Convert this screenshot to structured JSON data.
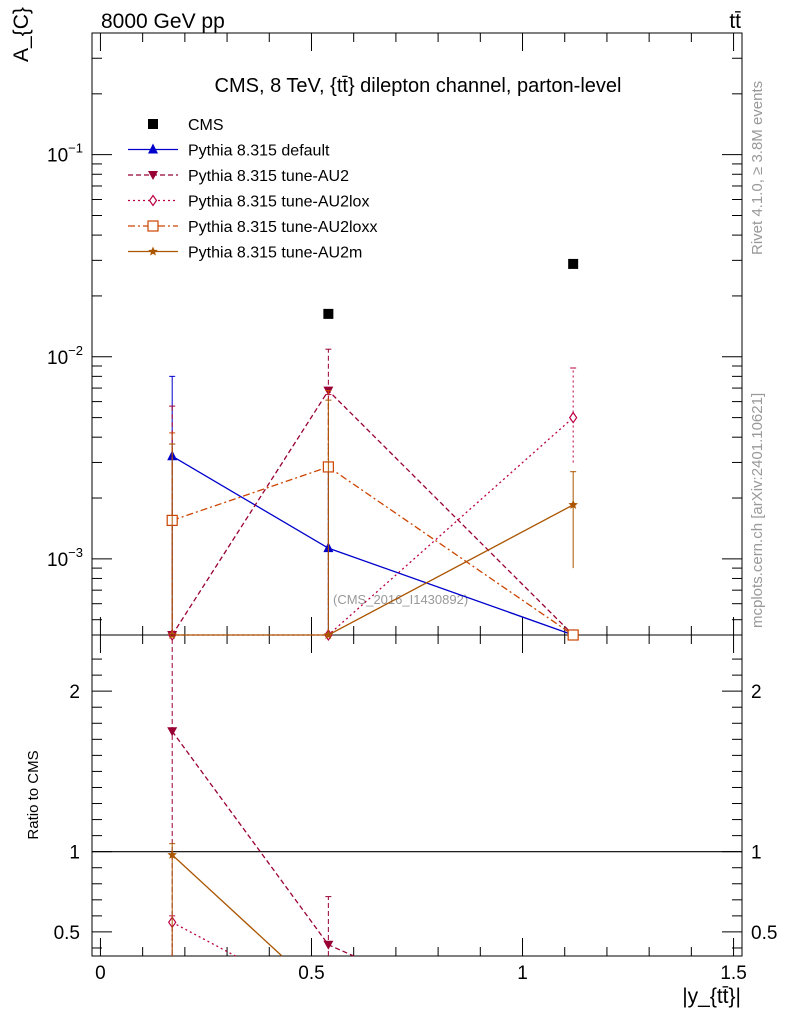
{
  "header": {
    "beam": "8000 GeV pp",
    "process": "tt̄"
  },
  "side_labels": {
    "rivet": "Rivet 4.1.0, ≥ 3.8M events",
    "mcplots": "mcplots.cern.ch [arXiv:2401.10621]"
  },
  "watermark": "(CMS_2016_I1430892)",
  "chart_data": [
    {
      "type": "line",
      "panel": "main",
      "title": "CMS, 8 TeV, {tt̄} dilepton channel, parton-level",
      "ylabel": "A_{C}",
      "xlabel": "",
      "yscale": "log",
      "xlim": [
        -0.02,
        1.52
      ],
      "ylim": [
        0.00042,
        0.4
      ],
      "x": [
        0.17,
        0.54,
        1.12
      ],
      "y_ticks": [
        {
          "value": 0.1,
          "mantissa": "10",
          "exp": "−1"
        },
        {
          "value": 0.01,
          "mantissa": "10",
          "exp": "−2"
        },
        {
          "value": 0.001,
          "mantissa": "10",
          "exp": "−3"
        }
      ],
      "legend_position": "top-left",
      "series": [
        {
          "name": "CMS",
          "color": "#000000",
          "marker": "square-filled",
          "line": "none",
          "values": [
            null,
            0.0163,
            0.0288
          ]
        },
        {
          "name": "Pythia 8.315 default",
          "color": "#0000cc",
          "marker": "triangle-up",
          "line": "solid",
          "values": [
            0.00322,
            0.00113,
            0.0004
          ],
          "err_hi": [
            0.008,
            0.0027,
            null
          ],
          "err_lo": [
            0.00042,
            0.00042,
            null
          ]
        },
        {
          "name": "Pythia 8.315 tune-AU2",
          "color": "#990033",
          "marker": "triangle-down",
          "line": "dashed",
          "values": [
            0.0004,
            0.0068,
            0.0004
          ],
          "err_hi": [
            0.0057,
            0.0109,
            null
          ],
          "err_lo": [
            0.00042,
            0.0032,
            null
          ]
        },
        {
          "name": "Pythia 8.315 tune-AU2lox",
          "color": "#bb0044",
          "marker": "diamond-open",
          "line": "dotted",
          "values": [
            0.0004,
            0.0004,
            0.005
          ],
          "err_hi": [
            0.0037,
            0.0065,
            0.0088
          ],
          "err_lo": [
            0.00042,
            0.00042,
            0.003
          ]
        },
        {
          "name": "Pythia 8.315 tune-AU2loxx",
          "color": "#cc4400",
          "marker": "square-open",
          "line": "dashdot",
          "values": [
            0.00155,
            0.00285,
            0.0004
          ],
          "err_hi": [
            0.0042,
            0.0068,
            null
          ],
          "err_lo": [
            0.00042,
            0.00042,
            null
          ]
        },
        {
          "name": "Pythia 8.315 tune-AU2m",
          "color": "#aa5500",
          "marker": "star",
          "line": "solid",
          "values": [
            0.0004,
            0.0004,
            0.00185
          ],
          "err_hi": [
            0.0037,
            0.0061,
            0.0027
          ],
          "err_lo": [
            0.00042,
            0.00042,
            0.0009
          ]
        }
      ]
    },
    {
      "type": "line",
      "panel": "ratio",
      "ylabel": "Ratio to CMS",
      "xlabel": "|y_{tt̄}|",
      "yscale": "linear",
      "xlim": [
        -0.02,
        1.52
      ],
      "ylim": [
        0.35,
        2.35
      ],
      "x_ticks": [
        {
          "value": 0,
          "label": "0"
        },
        {
          "value": 0.5,
          "label": "0.5"
        },
        {
          "value": 1,
          "label": "1"
        },
        {
          "value": 1.5,
          "label": "1.5"
        }
      ],
      "y_ticks": [
        {
          "value": 0.5,
          "label": "0.5"
        },
        {
          "value": 1,
          "label": "1"
        },
        {
          "value": 2,
          "label": "2"
        }
      ],
      "reference_line": 1.0,
      "series": [
        {
          "name": "Pythia 8.315 tune-AU2",
          "color": "#990033",
          "marker": "triangle-down",
          "line": "dashed",
          "x": [
            0.17,
            0.54,
            0.6
          ],
          "values": [
            1.75,
            0.42,
            0.35
          ],
          "err_x": [
            0.17,
            0.54
          ],
          "err_lo": [
            0.35,
            0.35
          ],
          "err_hi": [
            2.35,
            0.72
          ]
        },
        {
          "name": "Pythia 8.315 tune-AU2lox",
          "color": "#bb0044",
          "marker": "diamond-open",
          "line": "dotted",
          "x": [
            0.17,
            0.32
          ],
          "values": [
            0.56,
            0.35
          ],
          "err_x": [
            0.17
          ],
          "err_lo": [
            0.35
          ],
          "err_hi": [
            0.6
          ]
        },
        {
          "name": "Pythia 8.315 tune-AU2m",
          "color": "#aa5500",
          "marker": "star",
          "line": "solid",
          "x": [
            0.17,
            0.43
          ],
          "values": [
            0.98,
            0.35
          ],
          "err_x": [
            0.17
          ],
          "err_lo": [
            0.35
          ],
          "err_hi": [
            1.05
          ]
        }
      ]
    }
  ]
}
